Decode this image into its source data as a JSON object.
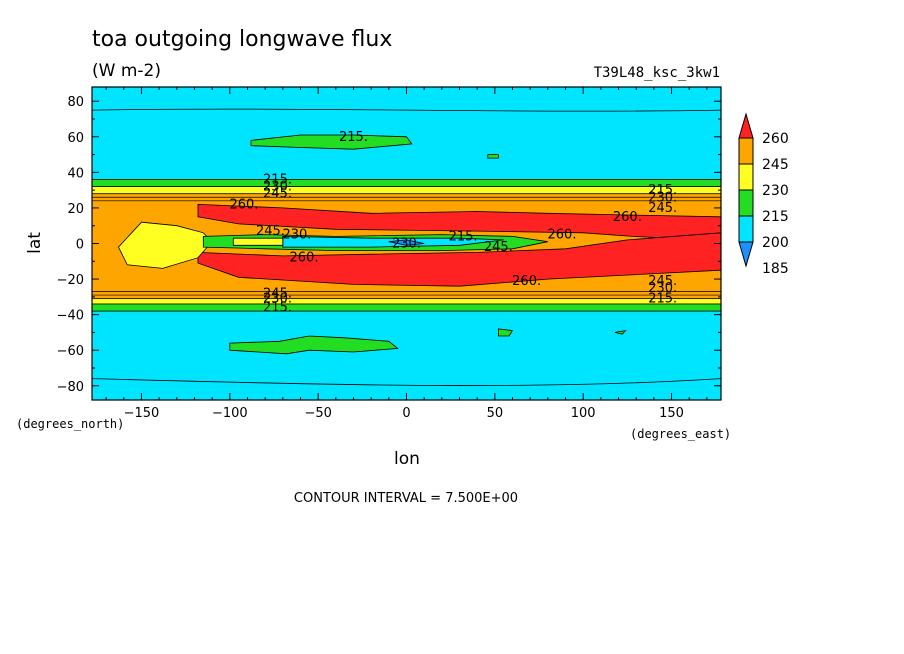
{
  "chart_data": {
    "type": "heatmap",
    "title": "toa outgoing longwave flux",
    "units": "(W m-2)",
    "run_label": "T39L48_ksc_3kw1",
    "xlabel": "lon",
    "ylabel": "lat",
    "x_unit_label": "(degrees_east)",
    "y_unit_label": "(degrees_north)",
    "xlim": [
      -178,
      178
    ],
    "ylim": [
      -88,
      88
    ],
    "x_ticks": [
      -150,
      -100,
      -50,
      0,
      50,
      100,
      150
    ],
    "y_ticks": [
      80,
      60,
      40,
      20,
      0,
      -20,
      -40,
      -60,
      -80
    ],
    "footer": "CONTOUR INTERVAL = 7.500E+00",
    "contour_interval": 7.5,
    "grid": false,
    "legend_position": "right",
    "colorbar": {
      "levels": [
        185,
        200,
        215,
        230,
        245,
        260
      ],
      "colors": [
        "#1e90ff",
        "#00e5ff",
        "#22dd22",
        "#ffff22",
        "#ffa500",
        "#ff2222"
      ]
    },
    "contour_labels": [
      {
        "text": "215.",
        "lon": -30,
        "lat": 60
      },
      {
        "text": "215.",
        "lon": -73,
        "lat": 36
      },
      {
        "text": "230.",
        "lon": -73,
        "lat": 32
      },
      {
        "text": "245.",
        "lon": -73,
        "lat": 28
      },
      {
        "text": "260.",
        "lon": -92,
        "lat": 22
      },
      {
        "text": "245.",
        "lon": -77,
        "lat": 7
      },
      {
        "text": "230.",
        "lon": -62,
        "lat": 5
      },
      {
        "text": "260.",
        "lon": -58,
        "lat": -8
      },
      {
        "text": "230.",
        "lon": 0,
        "lat": 0
      },
      {
        "text": "215.",
        "lon": 32,
        "lat": 4
      },
      {
        "text": "245.",
        "lon": 52,
        "lat": -2
      },
      {
        "text": "260.",
        "lon": 88,
        "lat": 5
      },
      {
        "text": "260.",
        "lon": 125,
        "lat": 15
      },
      {
        "text": "260.",
        "lon": 68,
        "lat": -21
      },
      {
        "text": "215.",
        "lon": 145,
        "lat": 30
      },
      {
        "text": "230.",
        "lon": 145,
        "lat": 26
      },
      {
        "text": "245.",
        "lon": 145,
        "lat": 20
      },
      {
        "text": "245.",
        "lon": 145,
        "lat": -21
      },
      {
        "text": "230.",
        "lon": 145,
        "lat": -25
      },
      {
        "text": "215.",
        "lon": 145,
        "lat": -31
      },
      {
        "text": "245.",
        "lon": -73,
        "lat": -28
      },
      {
        "text": "230.",
        "lon": -73,
        "lat": -31
      },
      {
        "text": "215.",
        "lon": -73,
        "lat": -36
      }
    ]
  }
}
